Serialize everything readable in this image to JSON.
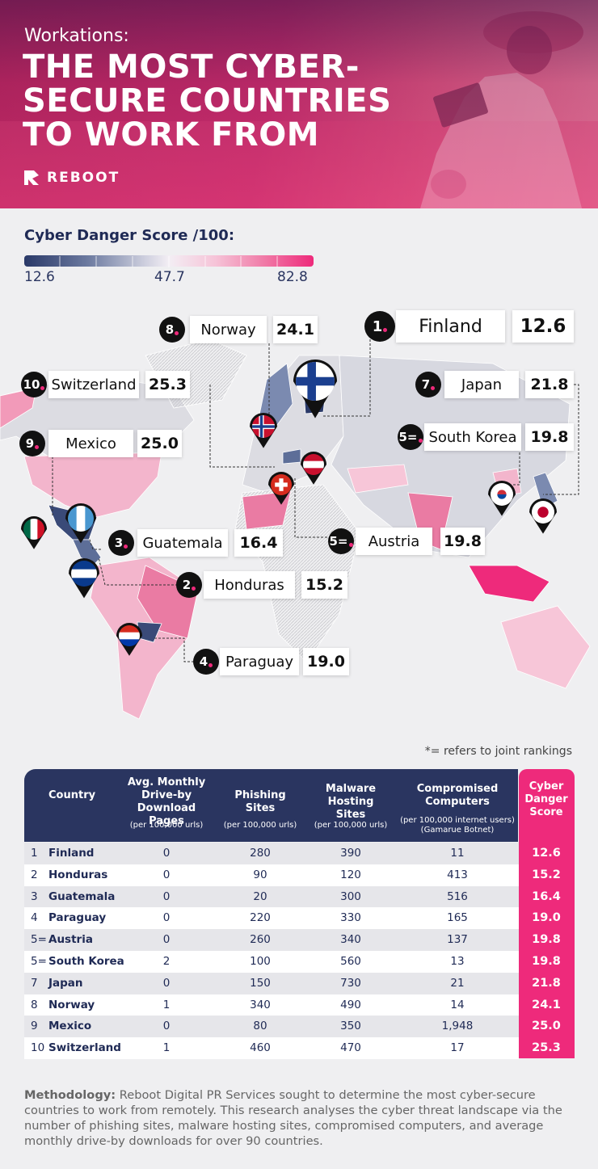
{
  "header": {
    "kicker": "Workations:",
    "title_lines": [
      "THE MOST CYBER-",
      "SECURE COUNTRIES",
      "TO WORK FROM"
    ],
    "brand": "REBOOT"
  },
  "legend": {
    "title": "Cyber Danger Score /100:",
    "labels": [
      "12.6",
      "47.7",
      "82.8"
    ]
  },
  "callouts": [
    {
      "rank": "8",
      "country": "Norway",
      "score": "24.1"
    },
    {
      "rank": "1",
      "country": "Finland",
      "score": "12.6"
    },
    {
      "rank": "10",
      "country": "Switzerland",
      "score": "25.3"
    },
    {
      "rank": "7",
      "country": "Japan",
      "score": "21.8"
    },
    {
      "rank": "9",
      "country": "Mexico",
      "score": "25.0"
    },
    {
      "rank": "5=",
      "country": "South Korea",
      "score": "19.8"
    },
    {
      "rank": "3",
      "country": "Guatemala",
      "score": "16.4"
    },
    {
      "rank": "5=",
      "country": "Austria",
      "score": "19.8"
    },
    {
      "rank": "2",
      "country": "Honduras",
      "score": "15.2"
    },
    {
      "rank": "4",
      "country": "Paraguay",
      "score": "19.0"
    }
  ],
  "footnote": "*= refers to joint rankings",
  "table": {
    "columns": [
      {
        "label": "Country"
      },
      {
        "label": "Avg. Monthly Drive-by Download Pages",
        "note": "(per 100,000 urls)"
      },
      {
        "label": "Phishing Sites",
        "note": "(per 100,000 urls)"
      },
      {
        "label": "Malware Hosting Sites",
        "note": "(per 100,000 urls)"
      },
      {
        "label": "Compromised Computers",
        "note": "(per 100,000 internet users) (Gamarue Botnet)"
      },
      {
        "label": "Cyber Danger Score"
      }
    ],
    "rows": [
      [
        "1",
        "Finland",
        "0",
        "280",
        "390",
        "11",
        "12.6"
      ],
      [
        "2",
        "Honduras",
        "0",
        "90",
        "120",
        "413",
        "15.2"
      ],
      [
        "3",
        "Guatemala",
        "0",
        "20",
        "300",
        "516",
        "16.4"
      ],
      [
        "4",
        "Paraguay",
        "0",
        "220",
        "330",
        "165",
        "19.0"
      ],
      [
        "5=",
        "Austria",
        "0",
        "260",
        "340",
        "137",
        "19.8"
      ],
      [
        "5=",
        "South Korea",
        "2",
        "100",
        "560",
        "13",
        "19.8"
      ],
      [
        "7",
        "Japan",
        "0",
        "150",
        "730",
        "21",
        "21.8"
      ],
      [
        "8",
        "Norway",
        "1",
        "340",
        "490",
        "14",
        "24.1"
      ],
      [
        "9",
        "Mexico",
        "0",
        "80",
        "350",
        "1,948",
        "25.0"
      ],
      [
        "10",
        "Switzerland",
        "1",
        "460",
        "470",
        "17",
        "25.3"
      ]
    ]
  },
  "methodology": {
    "label": "Methodology:",
    "text": "Reboot Digital PR Services sought to determine the most cyber-secure countries to work from remotely. This research analyses the cyber threat landscape via the number of phishing sites, malware hosting sites, compromised computers, and average monthly drive-by downloads for over 90 countries."
  }
}
